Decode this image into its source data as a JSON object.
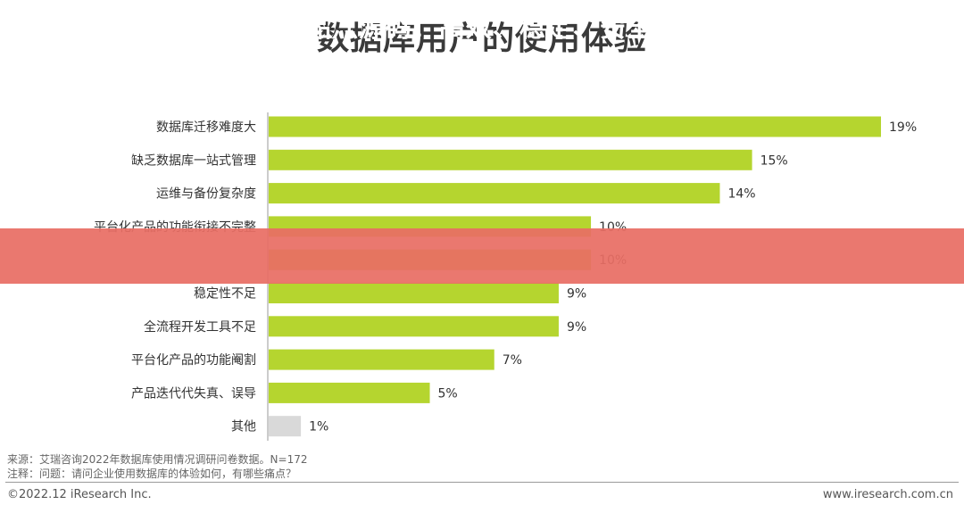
{
  "title": "数据库用户的使用体验",
  "banner": {
    "text": "99 国精产品灬源码：高效、稳定、安全的开发利器"
  },
  "chart_data": {
    "type": "bar",
    "orientation": "horizontal",
    "title": "数据库用户的使用体验",
    "categories": [
      "数据库迁移难度大",
      "缺乏数据库一站式管理",
      "运维与备份复杂度",
      "平台化产品的功能衔接不完整",
      "",
      "稳定性不足",
      "全流程开发工具不足",
      "平台化产品的功能阉割",
      "产品迭代代失真、误导",
      "其他"
    ],
    "values": [
      19,
      15,
      14,
      10,
      10,
      9,
      9,
      7,
      5,
      1
    ],
    "data_labels": [
      "19%",
      "15%",
      "14%",
      "10%",
      "10%",
      "9%",
      "9%",
      "7%",
      "5%",
      "1%"
    ],
    "unit": "%",
    "xlim": [
      0,
      19
    ],
    "grid": false,
    "legend": "none",
    "colors": {
      "bar": "#b5d52f",
      "other_bar": "#d9d9d9"
    }
  },
  "notes": {
    "source": "来源：艾瑞咨询2022年数据库使用情况调研问卷数据。N=172",
    "annotation": "注释：问题：请问企业使用数据库的体验如何，有哪些痛点？"
  },
  "footer": {
    "copyright": "©2022.12 iResearch Inc.",
    "website": "www.iresearch.com.cn"
  }
}
